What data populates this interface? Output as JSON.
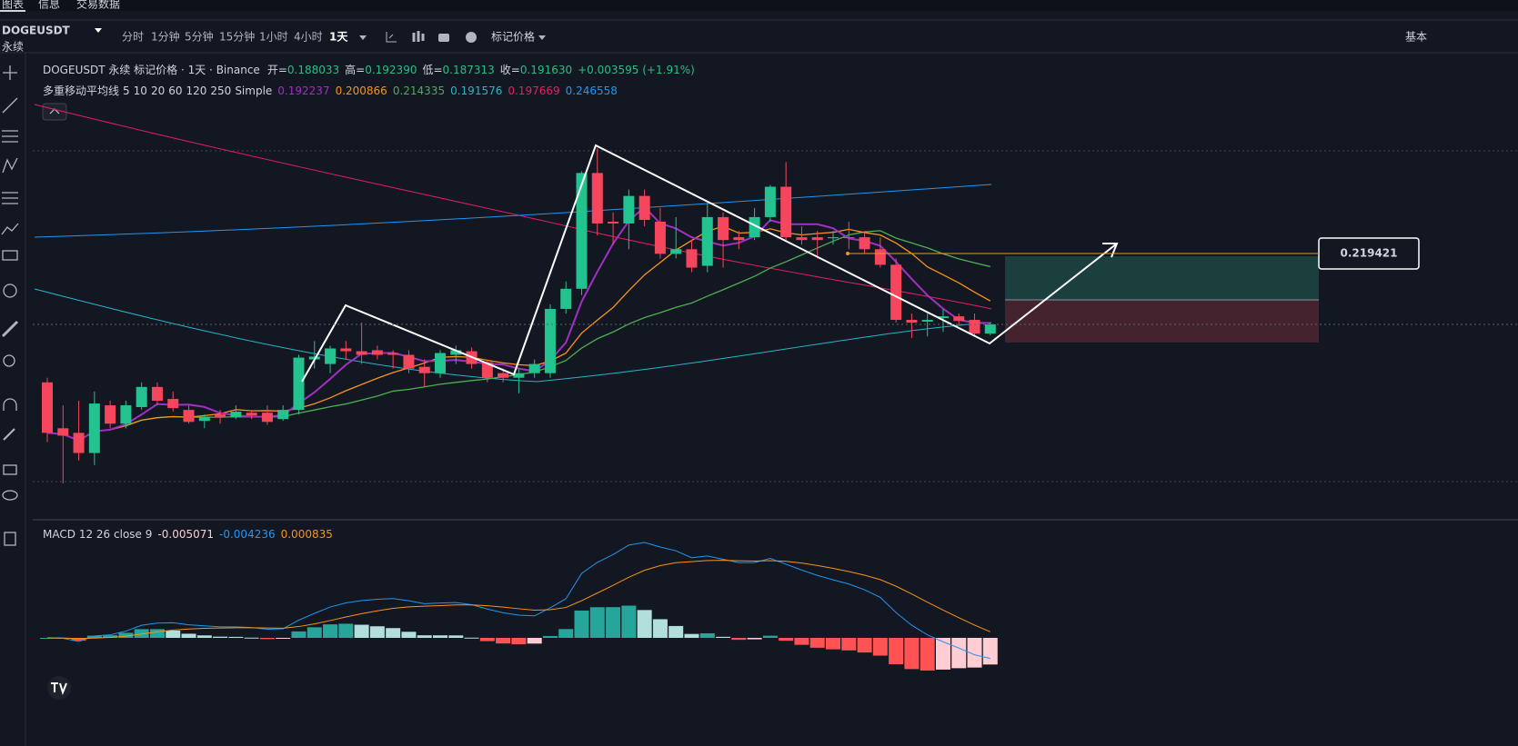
{
  "tabs": [
    "图表",
    "信息",
    "交易数据"
  ],
  "symbol": "DOGEUSDT",
  "contract": "永续",
  "intervals": [
    "分时",
    "1分钟",
    "5分钟",
    "15分钟",
    "1小时",
    "4小时",
    "1天"
  ],
  "price_type": "标记价格",
  "layout_label": "基本",
  "legend": {
    "title": "DOGEUSDT 永续 标记价格 · 1天 · Binance",
    "open": {
      "label": "开=",
      "value": "0.188033"
    },
    "high": {
      "label": "高=",
      "value": "0.192390"
    },
    "low": {
      "label": "低=",
      "value": "0.187313"
    },
    "close": {
      "label": "收=",
      "value": "0.191630"
    },
    "change": "+0.003595 (+1.91%)"
  },
  "ma": {
    "name": "多重移动平均线",
    "periods": [
      5,
      10,
      20,
      60,
      120,
      250
    ],
    "kind": "Simple",
    "series": [
      {
        "color": "#a22fc4",
        "value": 0.192237
      },
      {
        "color": "#f7931a",
        "value": 0.200866
      },
      {
        "color": "#4caf50",
        "value": 0.214335
      },
      {
        "color": "#26b5c9",
        "value": 0.191576
      },
      {
        "color": "#e91e63",
        "value": 0.197669
      },
      {
        "color": "#2196f3",
        "value": 0.246558
      }
    ]
  },
  "macd": {
    "name": "MACD",
    "fast": 12,
    "slow": 26,
    "source": "close",
    "signal": 9,
    "values": [
      -0.005071,
      -0.004236,
      0.000835
    ],
    "colors": [
      "#ffcdd2",
      "#2196f3",
      "#f7931a"
    ]
  },
  "price_label": 0.219421,
  "candles": {
    "open": [
      0.1689,
      0.1509,
      0.1491,
      0.1412,
      0.1599,
      0.1527,
      0.1592,
      0.1671,
      0.1624,
      0.1581,
      0.1538,
      0.1563,
      0.1552,
      0.157,
      0.157,
      0.1545,
      0.1581,
      0.1779,
      0.1761,
      0.1822,
      0.1811,
      0.1815,
      0.1804,
      0.1797,
      0.175,
      0.1725,
      0.1797,
      0.1811,
      0.1768,
      0.1725,
      0.1707,
      0.1725,
      0.1725,
      0.1977,
      0.2056,
      0.251,
      0.2319,
      0.2312,
      0.242,
      0.2319,
      0.2193,
      0.2211,
      0.2146,
      0.2337,
      0.2258,
      0.2258,
      0.2337,
      0.2456,
      0.2258,
      0.2258,
      0.2254,
      0.2258,
      0.2258,
      0.2211,
      0.215,
      0.1934,
      0.1927,
      0.1941,
      0.1948,
      0.1934,
      0.188033
    ],
    "close": [
      0.1491,
      0.148,
      0.1412,
      0.1606,
      0.1527,
      0.1599,
      0.1671,
      0.1617,
      0.1588,
      0.1534,
      0.1552,
      0.1552,
      0.1574,
      0.1559,
      0.1534,
      0.1581,
      0.1786,
      0.179,
      0.1822,
      0.1811,
      0.1797,
      0.1797,
      0.1797,
      0.1743,
      0.1725,
      0.1804,
      0.1815,
      0.1761,
      0.1707,
      0.1707,
      0.1725,
      0.1761,
      0.1977,
      0.2056,
      0.251,
      0.2312,
      0.2312,
      0.242,
      0.2326,
      0.2193,
      0.2211,
      0.2139,
      0.2337,
      0.2247,
      0.2247,
      0.2337,
      0.2456,
      0.2258,
      0.2247,
      0.2247,
      0.2258,
      0.2256,
      0.2211,
      0.215,
      0.1934,
      0.1923,
      0.1934,
      0.1948,
      0.193,
      0.188,
      0.19163
    ],
    "high": [
      0.1707,
      0.1599,
      0.1617,
      0.1653,
      0.1617,
      0.1617,
      0.1689,
      0.1689,
      0.1653,
      0.1599,
      0.1563,
      0.1581,
      0.1599,
      0.1581,
      0.1599,
      0.1599,
      0.1797,
      0.1851,
      0.1833,
      0.1851,
      0.1923,
      0.1833,
      0.1815,
      0.1815,
      0.1779,
      0.1815,
      0.1833,
      0.1826,
      0.1779,
      0.1743,
      0.1743,
      0.1779,
      0.1995,
      0.2085,
      0.2517,
      0.2607,
      0.2355,
      0.2445,
      0.2445,
      0.2373,
      0.2337,
      0.2247,
      0.2391,
      0.2355,
      0.2283,
      0.2373,
      0.2463,
      0.2553,
      0.2301,
      0.2283,
      0.2283,
      0.2319,
      0.2283,
      0.2258,
      0.2175,
      0.1959,
      0.1959,
      0.1977,
      0.1959,
      0.1959,
      0.19239
    ],
    "low": [
      0.1455,
      0.1293,
      0.1383,
      0.1365,
      0.1509,
      0.1509,
      0.1581,
      0.1599,
      0.1574,
      0.1527,
      0.1509,
      0.1527,
      0.1545,
      0.1545,
      0.1523,
      0.1538,
      0.1563,
      0.1743,
      0.1725,
      0.1779,
      0.1761,
      0.1779,
      0.1743,
      0.1725,
      0.1671,
      0.1707,
      0.1761,
      0.1743,
      0.1689,
      0.1689,
      0.1646,
      0.1707,
      0.1707,
      0.1959,
      0.2031,
      0.2265,
      0.2229,
      0.2211,
      0.2301,
      0.2175,
      0.2175,
      0.2121,
      0.2121,
      0.2139,
      0.2211,
      0.2247,
      0.2319,
      0.2247,
      0.2229,
      0.2175,
      0.2229,
      0.2211,
      0.2193,
      0.2139,
      0.1923,
      0.1862,
      0.1869,
      0.1887,
      0.1912,
      0.1869,
      0.187313
    ]
  }
}
